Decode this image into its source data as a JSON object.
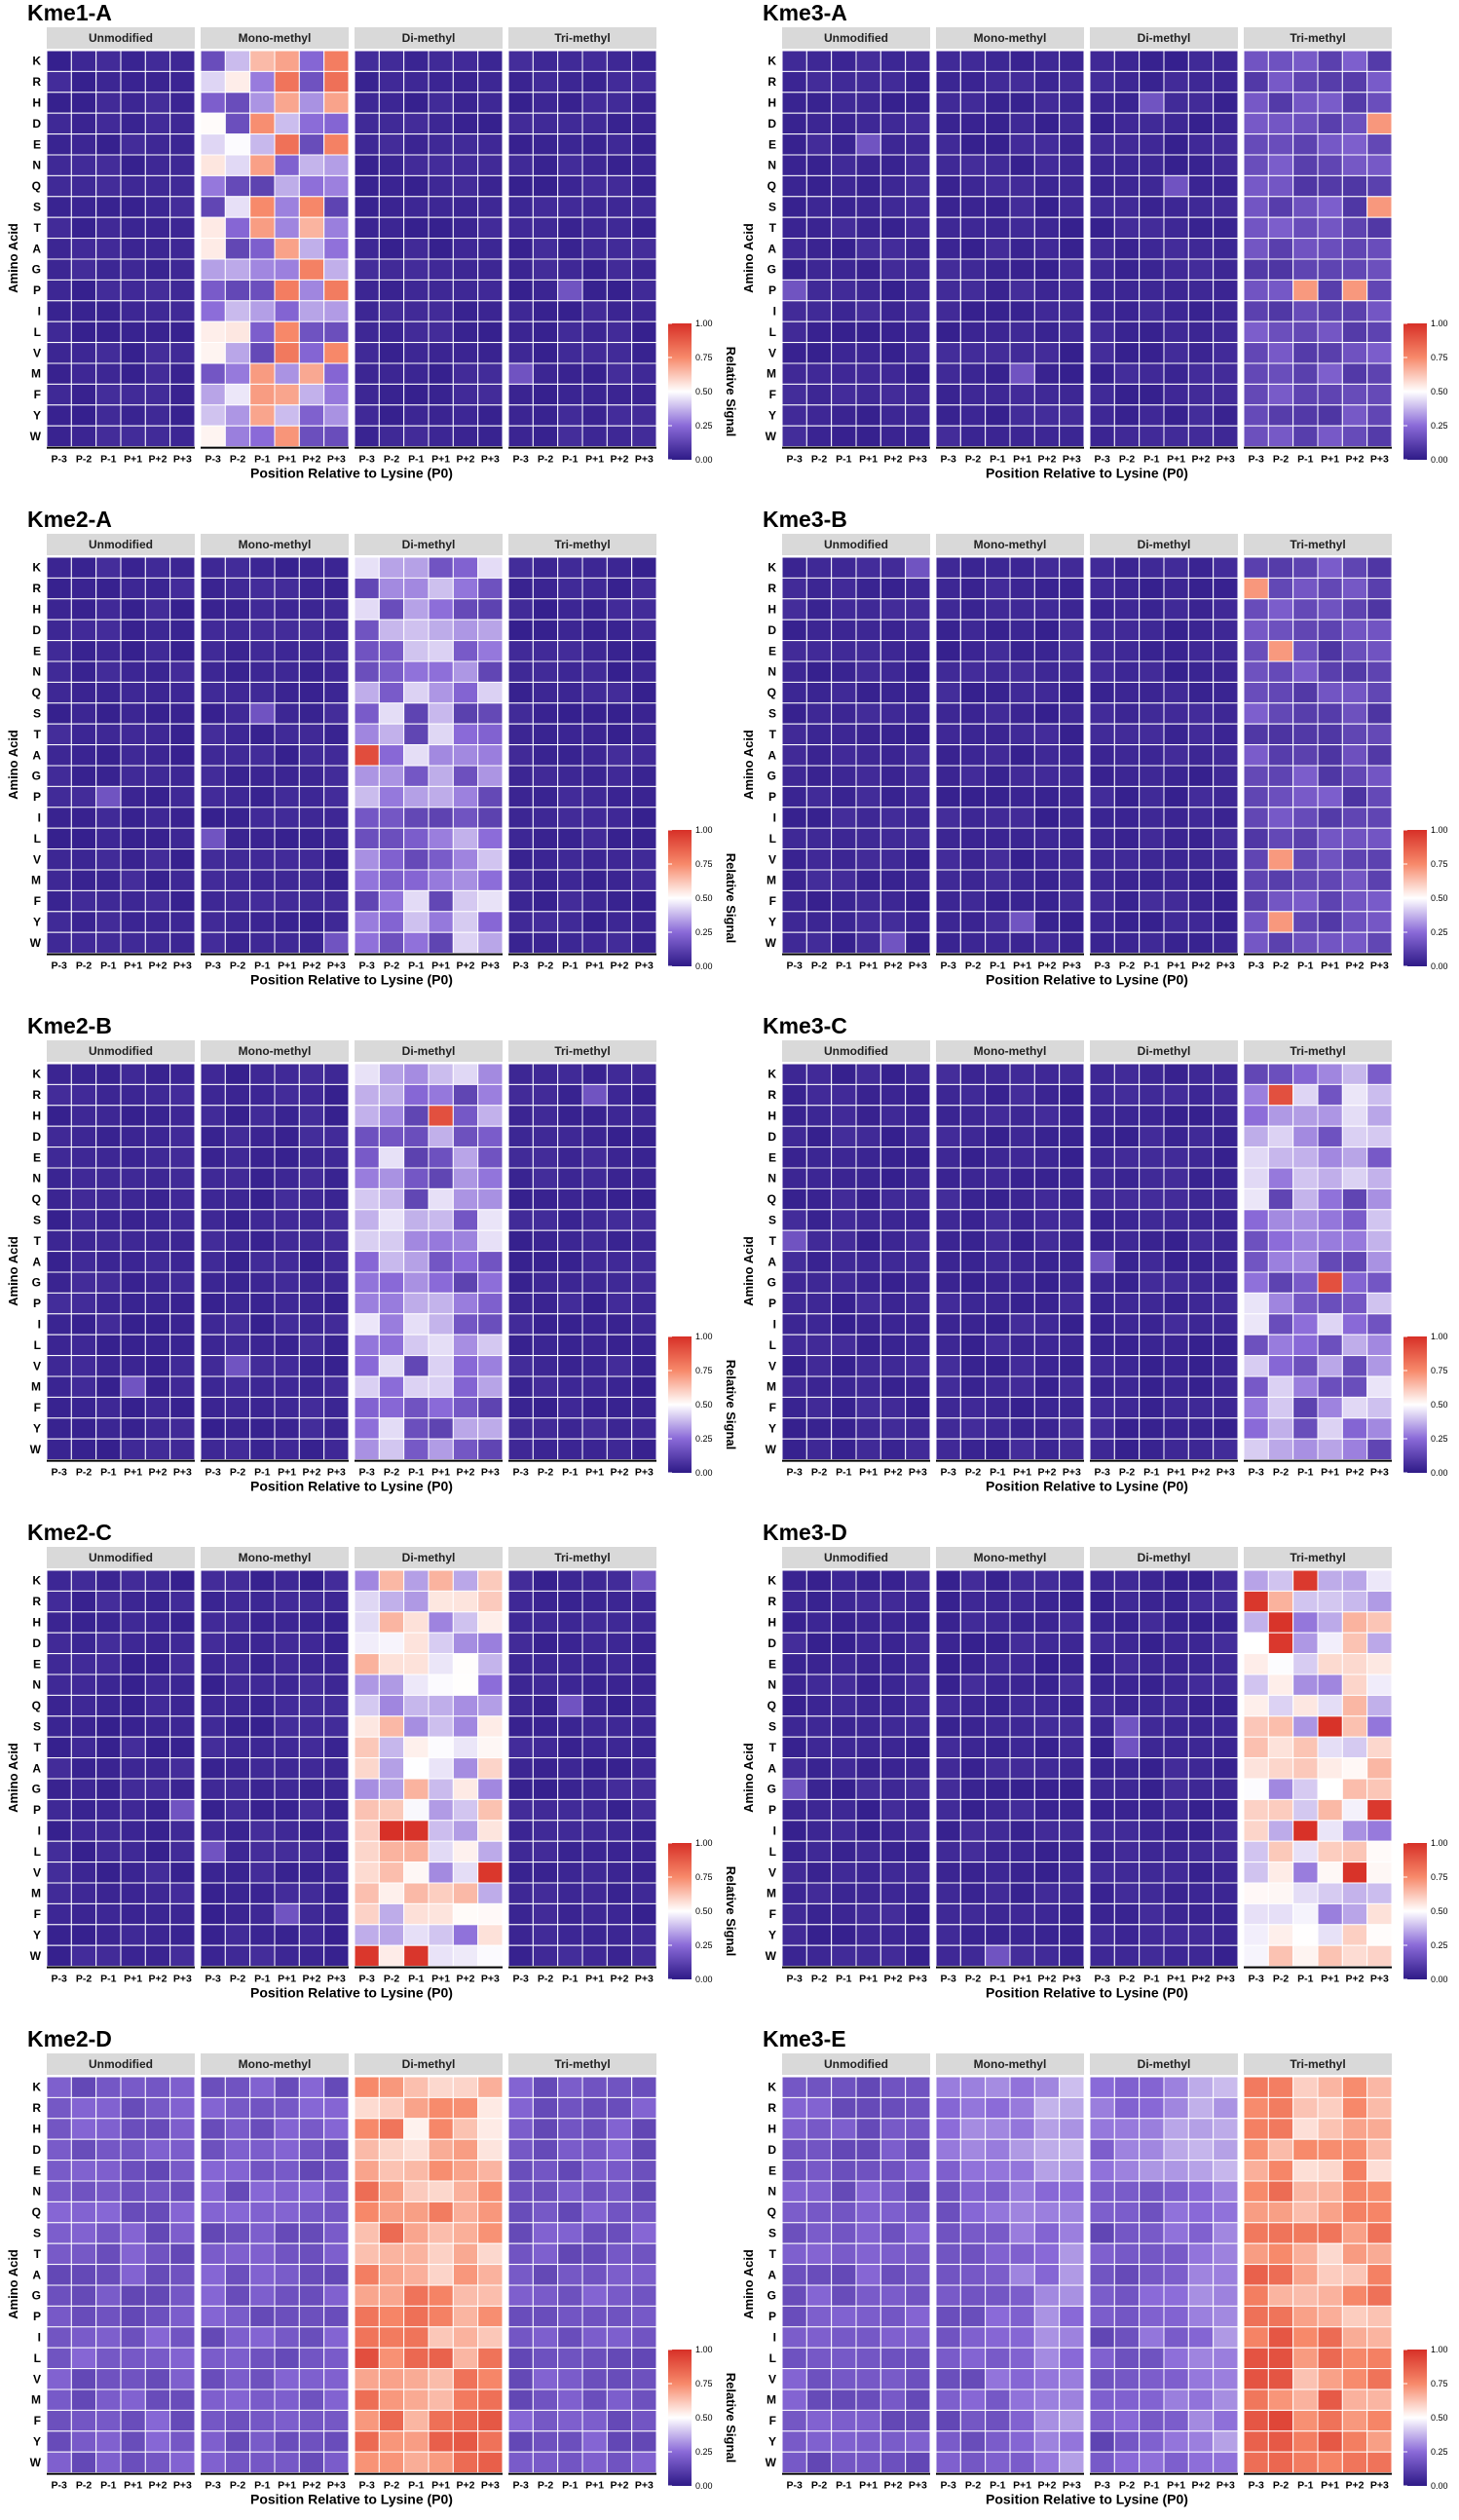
{
  "figure": {
    "shared": {
      "row_labels": [
        "K",
        "R",
        "H",
        "D",
        "E",
        "N",
        "Q",
        "S",
        "T",
        "A",
        "G",
        "P",
        "I",
        "L",
        "V",
        "M",
        "F",
        "Y",
        "W"
      ],
      "col_labels": [
        "P-3",
        "P-2",
        "P-1",
        "P+1",
        "P+2",
        "P+3"
      ],
      "facets": [
        "Unmodified",
        "Mono-methyl",
        "Di-methyl",
        "Tri-methyl"
      ],
      "xlabel": "Position Relative to Lysine (P0)",
      "ylabel": "Amino Acid",
      "legend_title": "Relative Signal",
      "legend_ticks": [
        "1.00",
        "0.75",
        "0.50",
        "0.25",
        "0.00"
      ],
      "colors": {
        "low": "#2e1a87",
        "mid_low": "#8a6ad8",
        "mid": "#ffffff",
        "high": "#d73027"
      }
    }
  },
  "chart_data": [
    {
      "type": "heatmap",
      "title": "Kme1-A",
      "pattern": {
        "Unmodified": "low",
        "Mono-methyl": "kme1",
        "Di-methyl": "low",
        "Tri-methyl": "low"
      }
    },
    {
      "type": "heatmap",
      "title": "Kme3-A",
      "pattern": {
        "Unmodified": "low",
        "Mono-methyl": "low",
        "Di-methyl": "low",
        "Tri-methyl": "faint"
      }
    },
    {
      "type": "heatmap",
      "title": "Kme2-A",
      "pattern": {
        "Unmodified": "low",
        "Mono-methyl": "low",
        "Di-methyl": "medium",
        "Tri-methyl": "low"
      }
    },
    {
      "type": "heatmap",
      "title": "Kme3-B",
      "pattern": {
        "Unmodified": "low",
        "Mono-methyl": "low",
        "Di-methyl": "low",
        "Tri-methyl": "faint"
      }
    },
    {
      "type": "heatmap",
      "title": "Kme2-B",
      "pattern": {
        "Unmodified": "low",
        "Mono-methyl": "low",
        "Di-methyl": "medium",
        "Tri-methyl": "low"
      }
    },
    {
      "type": "heatmap",
      "title": "Kme3-C",
      "pattern": {
        "Unmodified": "low",
        "Mono-methyl": "low",
        "Di-methyl": "low",
        "Tri-methyl": "medium"
      }
    },
    {
      "type": "heatmap",
      "title": "Kme2-C",
      "pattern": {
        "Unmodified": "low",
        "Mono-methyl": "low",
        "Di-methyl": "medhigh",
        "Tri-methyl": "low"
      }
    },
    {
      "type": "heatmap",
      "title": "Kme3-D",
      "pattern": {
        "Unmodified": "low",
        "Mono-methyl": "low",
        "Di-methyl": "low",
        "Tri-methyl": "medhigh"
      }
    },
    {
      "type": "heatmap",
      "title": "Kme2-D",
      "pattern": {
        "Unmodified": "uniform",
        "Mono-methyl": "uniform",
        "Di-methyl": "high",
        "Tri-methyl": "uniform"
      }
    },
    {
      "type": "heatmap",
      "title": "Kme3-E",
      "pattern": {
        "Unmodified": "uniform",
        "Mono-methyl": "graded",
        "Di-methyl": "graded",
        "Tri-methyl": "high"
      }
    }
  ]
}
